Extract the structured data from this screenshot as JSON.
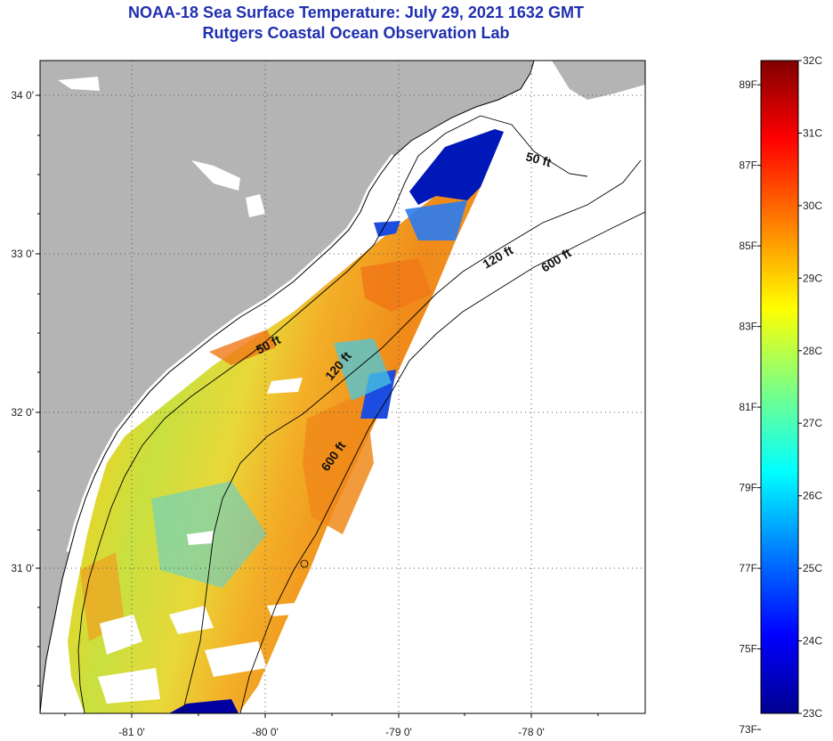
{
  "title": "NOAA-18 Sea Surface Temperature:  July 29, 2021 1632 GMT",
  "subtitle": "Rutgers Coastal Ocean Observation Lab",
  "latitude_labels": [
    "34 0'",
    "33 0'",
    "32 0'",
    "31 0'"
  ],
  "longitude_labels": [
    "-81 0'",
    "-80 0'",
    "-79 0'",
    "-78 0'"
  ],
  "contour_labels": [
    "50 ft",
    "120 ft",
    "600 ft",
    "50 ft",
    "120 ft",
    "600 ft"
  ],
  "colorbar": {
    "fahrenheit_labels": [
      "89F",
      "87F",
      "85F",
      "83F",
      "81F",
      "79F",
      "77F",
      "75F",
      "73F"
    ],
    "celsius_labels": [
      "32C",
      "31C",
      "30C",
      "29C",
      "28C",
      "27C",
      "26C",
      "25C",
      "24C",
      "23C"
    ],
    "min_c": 23,
    "max_c": 32,
    "colors": [
      "#00008f",
      "#0000ff",
      "#0080ff",
      "#00ffff",
      "#80ff80",
      "#ffff00",
      "#ff8000",
      "#ff0000",
      "#800000"
    ]
  },
  "colors": {
    "land": "#b4b4b4",
    "title": "#1f2fb0"
  }
}
